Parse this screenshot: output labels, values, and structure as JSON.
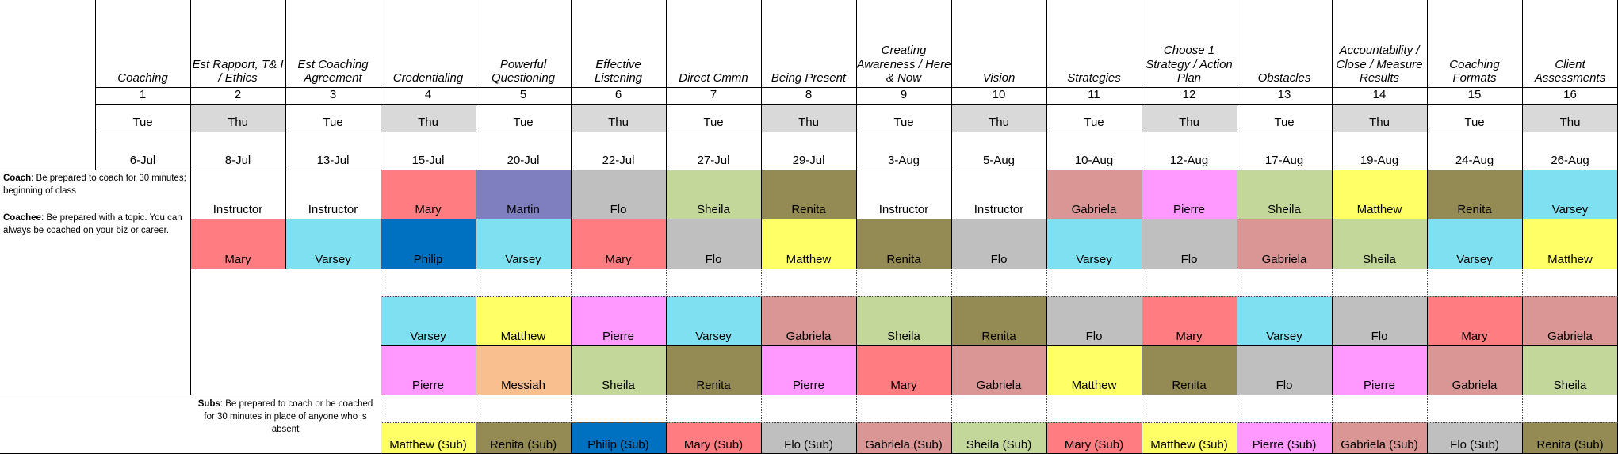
{
  "columns": [
    {
      "topic": "Coaching",
      "num": "1",
      "day": "Tue",
      "date": "6-Jul"
    },
    {
      "topic": "Est Rapport, T& I / Ethics",
      "num": "2",
      "day": "Thu",
      "date": "8-Jul"
    },
    {
      "topic": "Est Coaching Agreement",
      "num": "3",
      "day": "Tue",
      "date": "13-Jul"
    },
    {
      "topic": "Credentialing",
      "num": "4",
      "day": "Thu",
      "date": "15-Jul"
    },
    {
      "topic": "Powerful Questioning",
      "num": "5",
      "day": "Tue",
      "date": "20-Jul"
    },
    {
      "topic": "Effective Listening",
      "num": "6",
      "day": "Thu",
      "date": "22-Jul"
    },
    {
      "topic": "Direct Cmmn",
      "num": "7",
      "day": "Tue",
      "date": "27-Jul"
    },
    {
      "topic": "Being Present",
      "num": "8",
      "day": "Thu",
      "date": "29-Jul"
    },
    {
      "topic": "Creating Awareness / Here & Now",
      "num": "9",
      "day": "Tue",
      "date": "3-Aug"
    },
    {
      "topic": "Vision",
      "num": "10",
      "day": "Thu",
      "date": "5-Aug"
    },
    {
      "topic": "Strategies",
      "num": "11",
      "day": "Tue",
      "date": "10-Aug"
    },
    {
      "topic": "Choose 1 Strategy / Action Plan",
      "num": "12",
      "day": "Thu",
      "date": "12-Aug"
    },
    {
      "topic": "Obstacles",
      "num": "13",
      "day": "Tue",
      "date": "17-Aug"
    },
    {
      "topic": "Accountability / Close / Measure Results",
      "num": "14",
      "day": "Thu",
      "date": "19-Aug"
    },
    {
      "topic": "Coaching Formats",
      "num": "15",
      "day": "Tue",
      "date": "24-Aug"
    },
    {
      "topic": "Client Assessments",
      "num": "16",
      "day": "Thu",
      "date": "26-Aug"
    }
  ],
  "notes": {
    "coach_label": "Coach",
    "coach_text": ": Be prepared to coach for 30 minutes; beginning of class",
    "coachee_label": "Coachee",
    "coachee_text": ": Be prepared with a topic. You can always be coached on your biz or career.",
    "subs_label": "Subs",
    "subs_text": ": Be prepared to coach or be coached for 30 minutes in place of anyone who is absent"
  },
  "rows": {
    "coach": [
      "",
      "Instructor",
      "Instructor",
      "Mary",
      "Martin",
      "Flo",
      "Sheila",
      "Renita",
      "Instructor",
      "Instructor",
      "Gabriela",
      "Pierre",
      "Sheila",
      "Matthew",
      "Renita",
      "Varsey"
    ],
    "coachee": [
      "",
      "Mary",
      "Varsey",
      "Philip",
      "Varsey",
      "Mary",
      "Flo",
      "Matthew",
      "Renita",
      "Flo",
      "Varsey",
      "Flo",
      "Gabriela",
      "Sheila",
      "Varsey",
      "Matthew"
    ],
    "pair1": [
      "",
      "",
      "",
      "Varsey",
      "Matthew",
      "Pierre",
      "Varsey",
      "Gabriela",
      "Sheila",
      "Renita",
      "Flo",
      "Mary",
      "Varsey",
      "Flo",
      "Mary",
      "Gabriela"
    ],
    "pair2": [
      "",
      "",
      "",
      "Pierre",
      "Messiah",
      "Sheila",
      "Renita",
      "Pierre",
      "Mary",
      "Gabriela",
      "Matthew",
      "Renita",
      "Flo",
      "Pierre",
      "Gabriela",
      "Sheila"
    ],
    "subs": [
      "",
      "",
      "",
      "Matthew (Sub)",
      "Renita (Sub)",
      "Philip (Sub)",
      "Mary (Sub)",
      "Flo (Sub)",
      "Gabriela (Sub)",
      "Sheila (Sub)",
      "Mary (Sub)",
      "Matthew (Sub)",
      "Pierre (Sub)",
      "Gabriela (Sub)",
      "Flo (Sub)",
      "Renita (Sub)"
    ]
  },
  "colors": {
    "Mary": "#ff7c80",
    "Martin": "#7f7fbf",
    "Flo": "#bfbfbf",
    "Sheila": "#c4d79b",
    "Renita": "#948a54",
    "Gabriela": "#da9694",
    "Pierre": "#ff99ff",
    "Matthew": "#ffff66",
    "Varsey": "#7ee0f0",
    "Philip": "#0070c0",
    "Messiah": "#fabf8f",
    "Instructor": "#ffffff",
    "day_header_gray": "#d9d9d9"
  }
}
